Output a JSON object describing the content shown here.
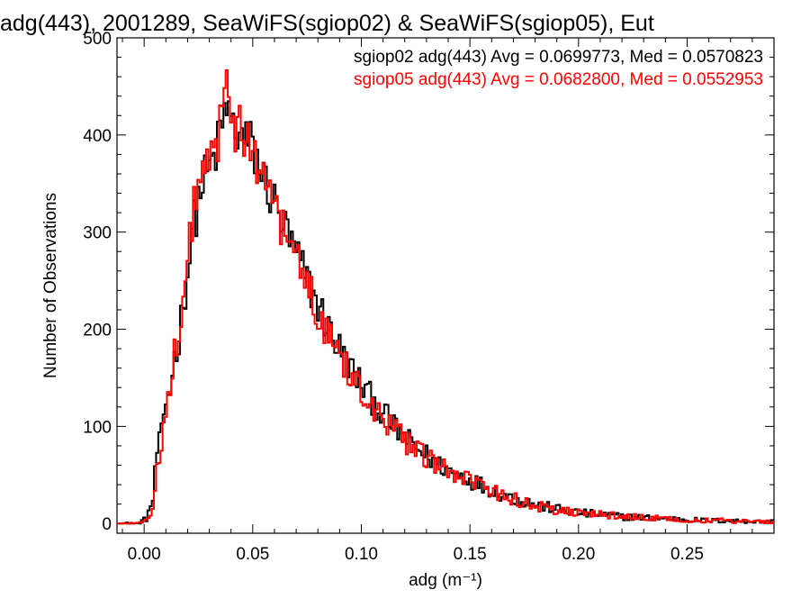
{
  "chart_data": {
    "type": "histogram-step",
    "title": "adg(443), 2001289, SeaWiFS(sgiop02) & SeaWiFS(sgiop05), Eut",
    "xlabel": "adg (m⁻¹)",
    "ylabel": "Number of Observations",
    "xlim": [
      -0.0125,
      0.29
    ],
    "ylim": [
      -10,
      500
    ],
    "x_ticks": [
      0.0,
      0.05,
      0.1,
      0.15,
      0.2,
      0.25
    ],
    "x_tick_labels": [
      "0.00",
      "0.05",
      "0.10",
      "0.15",
      "0.20",
      "0.25"
    ],
    "y_ticks": [
      0,
      100,
      200,
      300,
      400,
      500
    ],
    "y_tick_labels": [
      "0",
      "100",
      "200",
      "300",
      "400",
      "500"
    ],
    "bin_width": 0.001,
    "grid": false,
    "legend_position": "top-right",
    "series": [
      {
        "name": "sgiop02",
        "color": "#000000",
        "legend_text": "sgiop02 adg(443) Avg = 0.0699773, Med = 0.0570823",
        "avg": 0.0699773,
        "median": 0.0570823,
        "points": [
          [
            -0.003,
            0
          ],
          [
            0.001,
            5
          ],
          [
            0.004,
            25
          ],
          [
            0.006,
            75
          ],
          [
            0.008,
            90
          ],
          [
            0.01,
            125
          ],
          [
            0.012,
            140
          ],
          [
            0.014,
            170
          ],
          [
            0.016,
            190
          ],
          [
            0.018,
            230
          ],
          [
            0.02,
            255
          ],
          [
            0.022,
            300
          ],
          [
            0.024,
            320
          ],
          [
            0.026,
            345
          ],
          [
            0.028,
            355
          ],
          [
            0.03,
            365
          ],
          [
            0.032,
            375
          ],
          [
            0.034,
            390
          ],
          [
            0.036,
            410
          ],
          [
            0.038,
            430
          ],
          [
            0.04,
            415
          ],
          [
            0.042,
            400
          ],
          [
            0.044,
            405
          ],
          [
            0.046,
            390
          ],
          [
            0.048,
            395
          ],
          [
            0.05,
            385
          ],
          [
            0.052,
            375
          ],
          [
            0.054,
            360
          ],
          [
            0.056,
            352
          ],
          [
            0.058,
            340
          ],
          [
            0.06,
            330
          ],
          [
            0.062,
            318
          ],
          [
            0.064,
            308
          ],
          [
            0.066,
            298
          ],
          [
            0.068,
            285
          ],
          [
            0.07,
            278
          ],
          [
            0.072,
            265
          ],
          [
            0.074,
            258
          ],
          [
            0.076,
            245
          ],
          [
            0.078,
            235
          ],
          [
            0.08,
            225
          ],
          [
            0.082,
            215
          ],
          [
            0.084,
            205
          ],
          [
            0.086,
            198
          ],
          [
            0.088,
            188
          ],
          [
            0.09,
            180
          ],
          [
            0.092,
            172
          ],
          [
            0.094,
            165
          ],
          [
            0.096,
            157
          ],
          [
            0.098,
            150
          ],
          [
            0.1,
            143
          ],
          [
            0.102,
            137
          ],
          [
            0.104,
            130
          ],
          [
            0.106,
            125
          ],
          [
            0.108,
            118
          ],
          [
            0.11,
            113
          ],
          [
            0.112,
            108
          ],
          [
            0.114,
            102
          ],
          [
            0.116,
            97
          ],
          [
            0.118,
            93
          ],
          [
            0.12,
            88
          ],
          [
            0.125,
            78
          ],
          [
            0.13,
            70
          ],
          [
            0.135,
            62
          ],
          [
            0.14,
            55
          ],
          [
            0.145,
            50
          ],
          [
            0.15,
            45
          ],
          [
            0.155,
            40
          ],
          [
            0.16,
            35
          ],
          [
            0.165,
            30
          ],
          [
            0.17,
            26
          ],
          [
            0.175,
            23
          ],
          [
            0.18,
            20
          ],
          [
            0.185,
            17
          ],
          [
            0.19,
            15
          ],
          [
            0.195,
            13
          ],
          [
            0.2,
            11
          ],
          [
            0.205,
            10
          ],
          [
            0.21,
            9
          ],
          [
            0.22,
            7
          ],
          [
            0.23,
            6
          ],
          [
            0.24,
            5
          ],
          [
            0.25,
            4
          ],
          [
            0.26,
            3
          ],
          [
            0.27,
            3
          ],
          [
            0.28,
            2
          ],
          [
            0.29,
            2
          ]
        ]
      },
      {
        "name": "sgiop05",
        "color": "#ff0000",
        "legend_text": "sgiop05 adg(443) Avg = 0.0682800, Med = 0.0552953",
        "avg": 0.06828,
        "median": 0.0552953,
        "points": [
          [
            -0.003,
            0
          ],
          [
            0.001,
            3
          ],
          [
            0.004,
            15
          ],
          [
            0.006,
            60
          ],
          [
            0.008,
            85
          ],
          [
            0.01,
            120
          ],
          [
            0.012,
            140
          ],
          [
            0.014,
            175
          ],
          [
            0.016,
            200
          ],
          [
            0.018,
            240
          ],
          [
            0.02,
            265
          ],
          [
            0.022,
            310
          ],
          [
            0.024,
            335
          ],
          [
            0.026,
            355
          ],
          [
            0.028,
            362
          ],
          [
            0.03,
            372
          ],
          [
            0.032,
            380
          ],
          [
            0.034,
            395
          ],
          [
            0.036,
            415
          ],
          [
            0.038,
            440
          ],
          [
            0.04,
            425
          ],
          [
            0.042,
            405
          ],
          [
            0.044,
            410
          ],
          [
            0.046,
            395
          ],
          [
            0.048,
            400
          ],
          [
            0.05,
            388
          ],
          [
            0.052,
            375
          ],
          [
            0.054,
            362
          ],
          [
            0.056,
            352
          ],
          [
            0.058,
            340
          ],
          [
            0.06,
            328
          ],
          [
            0.062,
            316
          ],
          [
            0.064,
            305
          ],
          [
            0.066,
            295
          ],
          [
            0.068,
            282
          ],
          [
            0.07,
            272
          ],
          [
            0.072,
            262
          ],
          [
            0.074,
            250
          ],
          [
            0.076,
            240
          ],
          [
            0.078,
            230
          ],
          [
            0.08,
            220
          ],
          [
            0.082,
            210
          ],
          [
            0.084,
            200
          ],
          [
            0.086,
            192
          ],
          [
            0.088,
            183
          ],
          [
            0.09,
            175
          ],
          [
            0.092,
            167
          ],
          [
            0.094,
            160
          ],
          [
            0.096,
            152
          ],
          [
            0.098,
            145
          ],
          [
            0.1,
            138
          ],
          [
            0.102,
            132
          ],
          [
            0.104,
            126
          ],
          [
            0.106,
            120
          ],
          [
            0.108,
            114
          ],
          [
            0.11,
            109
          ],
          [
            0.112,
            104
          ],
          [
            0.114,
            99
          ],
          [
            0.116,
            94
          ],
          [
            0.118,
            90
          ],
          [
            0.12,
            85
          ],
          [
            0.125,
            75
          ],
          [
            0.13,
            67
          ],
          [
            0.135,
            60
          ],
          [
            0.14,
            53
          ],
          [
            0.145,
            48
          ],
          [
            0.15,
            43
          ],
          [
            0.155,
            38
          ],
          [
            0.16,
            33
          ],
          [
            0.165,
            29
          ],
          [
            0.17,
            25
          ],
          [
            0.175,
            22
          ],
          [
            0.18,
            19
          ],
          [
            0.185,
            16
          ],
          [
            0.19,
            14
          ],
          [
            0.195,
            12
          ],
          [
            0.2,
            11
          ],
          [
            0.205,
            10
          ],
          [
            0.21,
            9
          ],
          [
            0.22,
            7
          ],
          [
            0.23,
            6
          ],
          [
            0.24,
            5
          ],
          [
            0.25,
            4
          ],
          [
            0.26,
            3
          ],
          [
            0.27,
            3
          ],
          [
            0.28,
            2
          ],
          [
            0.29,
            2
          ]
        ]
      }
    ]
  }
}
